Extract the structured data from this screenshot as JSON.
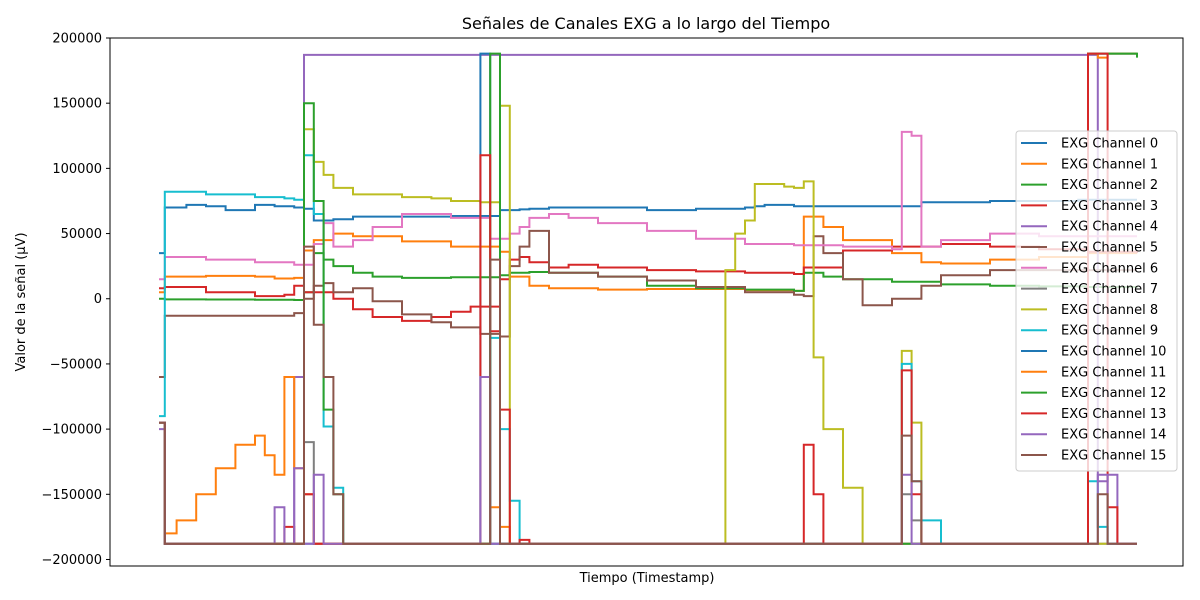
{
  "chart_data": {
    "type": "line",
    "title": "Señales de Canales EXG a lo largo del Tiempo",
    "xlabel": "Tiempo (Timestamp)",
    "ylabel": "Valor de la señal (µV)",
    "xlim": [
      0,
      100
    ],
    "ylim": [
      -205000,
      200000
    ],
    "yticks": [
      -200000,
      -150000,
      -100000,
      -50000,
      0,
      50000,
      100000,
      150000,
      200000
    ],
    "ytick_labels": [
      "−200000",
      "−150000",
      "−100000",
      "−50000",
      "0",
      "50000",
      "100000",
      "150000",
      "200000"
    ],
    "xticks_shown": false,
    "grid": false,
    "legend_position": "right",
    "series": [
      {
        "name": "EXG Channel 0",
        "color": "#1f77b4",
        "x": [
          0.2,
          0.8,
          3,
          5,
          7,
          10,
          12,
          14,
          15,
          16,
          18,
          20,
          22,
          25,
          30,
          35,
          36,
          37,
          38,
          40,
          45,
          50,
          55,
          60,
          61,
          62,
          65,
          70,
          75,
          78,
          80,
          85,
          90,
          94,
          95,
          96,
          100
        ],
        "y": [
          35000,
          70000,
          72000,
          71000,
          68000,
          72000,
          71000,
          70000,
          69000,
          60000,
          61000,
          63000,
          63000,
          63000,
          63500,
          68000,
          68000,
          68500,
          69000,
          70000,
          70000,
          68000,
          69000,
          70000,
          71000,
          72000,
          71000,
          71000,
          71000,
          74000,
          74000,
          75000,
          75000,
          76000,
          76000,
          76000,
          76000
        ]
      },
      {
        "name": "EXG Channel 1",
        "color": "#ff7f0e",
        "x": [
          0.2,
          0.8,
          5,
          10,
          12,
          14,
          15,
          16,
          18,
          20,
          25,
          30,
          35,
          36,
          38,
          40,
          45,
          50,
          55,
          60,
          65,
          66,
          68,
          70,
          75,
          78,
          80,
          85,
          90,
          95,
          100
        ],
        "y": [
          5000,
          17000,
          17500,
          17000,
          15500,
          16000,
          37000,
          45000,
          50000,
          48000,
          44000,
          40000,
          36000,
          17000,
          10000,
          8000,
          7000,
          7500,
          7500,
          6500,
          6000,
          63000,
          55000,
          45000,
          35000,
          28000,
          27000,
          30000,
          32000,
          35000,
          35000
        ]
      },
      {
        "name": "EXG Channel 2",
        "color": "#2ca02c",
        "x": [
          0.2,
          0.8,
          5,
          10,
          14,
          15,
          16,
          17,
          18,
          20,
          22,
          25,
          28,
          30,
          35,
          36,
          38,
          40,
          45,
          50,
          55,
          60,
          65,
          66,
          68,
          70,
          75,
          80,
          85,
          90,
          95,
          100
        ],
        "y": [
          0,
          -500,
          -600,
          -700,
          -1000,
          5000,
          35000,
          30000,
          25000,
          20000,
          17000,
          16000,
          16000,
          16500,
          18000,
          20000,
          20500,
          20000,
          17000,
          10000,
          8000,
          7000,
          6000,
          20000,
          17000,
          15000,
          13000,
          11000,
          10000,
          9500,
          9000,
          8500
        ]
      },
      {
        "name": "EXG Channel 3",
        "color": "#d62728",
        "x": [
          0.2,
          0.8,
          5,
          10,
          13,
          14,
          15,
          18,
          20,
          22,
          25,
          28,
          30,
          32,
          35,
          36,
          37,
          38,
          40,
          42,
          45,
          50,
          55,
          60,
          65,
          66,
          70,
          75,
          80,
          85,
          90,
          95,
          100
        ],
        "y": [
          8000,
          9000,
          5000,
          2000,
          3000,
          10000,
          5000,
          0,
          -8000,
          -14000,
          -17000,
          -14000,
          -10000,
          -6000,
          15000,
          30000,
          32000,
          28000,
          24000,
          26000,
          24000,
          22000,
          21000,
          20000,
          19000,
          24000,
          37000,
          40000,
          42000,
          40000,
          38000,
          36000,
          35000
        ]
      },
      {
        "name": "EXG Channel 4",
        "color": "#9467bd",
        "x": [
          0.2,
          0.8,
          5,
          10,
          13.5,
          14,
          15,
          20,
          30,
          40,
          50,
          60,
          70,
          80,
          90,
          95,
          96,
          97,
          98,
          100
        ],
        "y": [
          -100000,
          -188000,
          -188000,
          -188000,
          -188000,
          -60000,
          187000,
          187000,
          187000,
          187000,
          187000,
          187000,
          187000,
          187000,
          187000,
          187000,
          -140000,
          -135000,
          -188000,
          -188000
        ]
      },
      {
        "name": "EXG Channel 5",
        "color": "#8c564b",
        "x": [
          0.2,
          0.8,
          5,
          10,
          14,
          15,
          16,
          17,
          18,
          20,
          22,
          25,
          28,
          30,
          33,
          35,
          36,
          37,
          38,
          40,
          45,
          50,
          55,
          60,
          65,
          66,
          67,
          68,
          70,
          72,
          75,
          78,
          80,
          85,
          90,
          95,
          100
        ],
        "y": [
          -60000,
          -13000,
          -13000,
          -13000,
          -11000,
          0,
          10000,
          12000,
          5000,
          8000,
          -2000,
          -12000,
          -18000,
          -22000,
          -27000,
          -29000,
          25000,
          40000,
          52000,
          20000,
          17000,
          14000,
          9000,
          5000,
          3000,
          2000,
          48000,
          35000,
          15000,
          -5000,
          0,
          10000,
          18000,
          22000,
          22000,
          22000,
          22000
        ]
      },
      {
        "name": "EXG Channel 6",
        "color": "#e377c2",
        "x": [
          0.2,
          0.8,
          5,
          10,
          14,
          15,
          16,
          17,
          18,
          20,
          22,
          25,
          28,
          30,
          34,
          36,
          37,
          38,
          40,
          42,
          45,
          50,
          55,
          60,
          65,
          70,
          75,
          76,
          77,
          78,
          80,
          85,
          90,
          95,
          100
        ],
        "y": [
          15000,
          32000,
          30000,
          28000,
          26000,
          26000,
          42000,
          58000,
          40000,
          45000,
          55000,
          65000,
          65000,
          62000,
          46000,
          50000,
          55000,
          62000,
          65000,
          62000,
          58000,
          52000,
          46000,
          42000,
          41000,
          40000,
          38000,
          128000,
          125000,
          40000,
          45000,
          50000,
          48000,
          48000,
          48000
        ]
      },
      {
        "name": "EXG Channel 7",
        "color": "#7f7f7f",
        "x": [
          0.2,
          0.8,
          5,
          10,
          14,
          15,
          16,
          20,
          30,
          40,
          50,
          60,
          70,
          75,
          76,
          77,
          78,
          80,
          90,
          95,
          96,
          100
        ],
        "y": [
          -95000,
          -188000,
          -188000,
          -188000,
          -188000,
          -110000,
          -188000,
          -188000,
          -188000,
          -188000,
          -188000,
          -188000,
          -188000,
          -188000,
          -150000,
          -170000,
          -188000,
          -188000,
          -188000,
          -188000,
          -188000,
          -188000
        ]
      },
      {
        "name": "EXG Channel 8",
        "color": "#bcbd22",
        "x": [
          0.2,
          0.8,
          5,
          10,
          14,
          15,
          16,
          17,
          18,
          20,
          25,
          28,
          30,
          33,
          35,
          36,
          37,
          40,
          50,
          57,
          58,
          59,
          60,
          61,
          62,
          64,
          65,
          66,
          67,
          68,
          70,
          72,
          75,
          76,
          77,
          78,
          80,
          90,
          95,
          96,
          97,
          98,
          100
        ],
        "y": [
          -95000,
          -188000,
          -188000,
          -188000,
          -188000,
          130000,
          105000,
          95000,
          85000,
          80000,
          78000,
          77000,
          75000,
          74000,
          148000,
          -188000,
          -188000,
          -188000,
          -188000,
          -188000,
          22000,
          50000,
          60000,
          88000,
          88000,
          86000,
          85000,
          90000,
          -45000,
          -100000,
          -145000,
          -188000,
          -188000,
          -40000,
          -95000,
          -188000,
          -188000,
          -188000,
          -188000,
          -188000,
          -188000,
          -188000,
          -188000
        ]
      },
      {
        "name": "EXG Channel 9",
        "color": "#17becf",
        "x": [
          0.2,
          0.8,
          5,
          10,
          13,
          14,
          15,
          16,
          17,
          18,
          19,
          20,
          25,
          30,
          33,
          34,
          35,
          36,
          37,
          40,
          50,
          60,
          70,
          75,
          76,
          77,
          78,
          80,
          90,
          94,
          95,
          96,
          97,
          100
        ],
        "y": [
          -90000,
          82000,
          80000,
          78000,
          77000,
          76000,
          110000,
          65000,
          -98000,
          -145000,
          -188000,
          -188000,
          -188000,
          -188000,
          -188000,
          -30000,
          -100000,
          -155000,
          -188000,
          -188000,
          -188000,
          -188000,
          -188000,
          -188000,
          -50000,
          -140000,
          -170000,
          -188000,
          -188000,
          -188000,
          -140000,
          -175000,
          -188000,
          -188000
        ]
      },
      {
        "name": "EXG Channel 10",
        "color": "#1f77b4",
        "x": [
          0.2,
          0.8,
          10,
          20,
          32,
          33,
          34,
          35,
          40,
          50,
          60,
          70,
          80,
          90,
          94,
          95,
          96,
          97,
          100
        ],
        "y": [
          -95000,
          -188000,
          -188000,
          -188000,
          -188000,
          188000,
          -188000,
          -188000,
          -188000,
          -188000,
          -188000,
          -188000,
          -188000,
          -188000,
          -188000,
          188000,
          188000,
          188000,
          188000
        ]
      },
      {
        "name": "EXG Channel 11",
        "color": "#ff7f0e",
        "x": [
          0.2,
          0.8,
          2,
          4,
          6,
          8,
          10,
          11,
          12,
          13,
          14,
          15,
          16,
          17,
          18,
          20,
          30,
          33,
          34,
          35,
          36,
          37,
          40,
          50,
          60,
          70,
          80,
          90,
          95,
          96,
          97,
          100
        ],
        "y": [
          -95000,
          -180000,
          -170000,
          -150000,
          -130000,
          -112000,
          -105000,
          -120000,
          -135000,
          -60000,
          -130000,
          -150000,
          -188000,
          -188000,
          -188000,
          -188000,
          -188000,
          -188000,
          -160000,
          -175000,
          -188000,
          -188000,
          -188000,
          -188000,
          -188000,
          -188000,
          -188000,
          -188000,
          188000,
          185000,
          188000,
          188000
        ]
      },
      {
        "name": "EXG Channel 12",
        "color": "#2ca02c",
        "x": [
          0.2,
          0.8,
          10,
          14,
          15,
          16,
          17,
          18,
          19,
          20,
          30,
          33,
          34,
          35,
          40,
          50,
          60,
          70,
          80,
          90,
          94,
          95,
          96,
          97,
          98,
          100
        ],
        "y": [
          -95000,
          -188000,
          -188000,
          -188000,
          150000,
          75000,
          -85000,
          -150000,
          -188000,
          -188000,
          -188000,
          -188000,
          188000,
          -188000,
          -188000,
          -188000,
          -188000,
          -188000,
          -188000,
          -188000,
          -188000,
          188000,
          188000,
          188000,
          188000,
          185000
        ]
      },
      {
        "name": "EXG Channel 13",
        "color": "#d62728",
        "x": [
          0.2,
          0.8,
          10,
          12,
          13,
          14,
          15,
          16,
          20,
          32,
          33,
          34,
          35,
          36,
          37,
          38,
          40,
          60,
          65,
          66,
          67,
          68,
          70,
          75,
          76,
          77,
          78,
          80,
          90,
          95,
          96,
          97,
          98,
          100
        ],
        "y": [
          -95000,
          -188000,
          -188000,
          -188000,
          -175000,
          -188000,
          -150000,
          -188000,
          -188000,
          -188000,
          110000,
          -25000,
          -85000,
          -188000,
          -185000,
          -188000,
          -188000,
          -188000,
          -188000,
          -112000,
          -150000,
          -188000,
          -188000,
          -188000,
          -55000,
          -150000,
          -188000,
          -188000,
          -188000,
          188000,
          188000,
          -160000,
          -188000,
          -188000
        ]
      },
      {
        "name": "EXG Channel 14",
        "color": "#9467bd",
        "x": [
          0.2,
          0.8,
          10,
          12,
          13,
          14,
          15,
          16,
          17,
          20,
          32,
          33,
          34,
          35,
          40,
          60,
          70,
          76,
          77,
          78,
          80,
          90,
          95,
          96,
          97,
          98,
          100
        ],
        "y": [
          -95000,
          -188000,
          -188000,
          -160000,
          -188000,
          -130000,
          -188000,
          -135000,
          -188000,
          -188000,
          -188000,
          -60000,
          -188000,
          -188000,
          -188000,
          -188000,
          -188000,
          -135000,
          -188000,
          -188000,
          -188000,
          -188000,
          -188000,
          -135000,
          -188000,
          -188000,
          -188000
        ]
      },
      {
        "name": "EXG Channel 15",
        "color": "#8c564b",
        "x": [
          0.2,
          0.8,
          10,
          14,
          15,
          16,
          17,
          18,
          19,
          20,
          30,
          33,
          34,
          35,
          36,
          37,
          40,
          60,
          70,
          75,
          76,
          77,
          78,
          80,
          90,
          95,
          96,
          97,
          98,
          100
        ],
        "y": [
          -95000,
          -188000,
          -188000,
          -188000,
          40000,
          -20000,
          -60000,
          -150000,
          -188000,
          -188000,
          -188000,
          -188000,
          30000,
          -188000,
          -188000,
          -188000,
          -188000,
          -188000,
          -188000,
          -188000,
          -105000,
          -140000,
          -188000,
          -188000,
          -188000,
          -188000,
          -150000,
          -188000,
          -188000,
          -188000
        ]
      }
    ]
  }
}
